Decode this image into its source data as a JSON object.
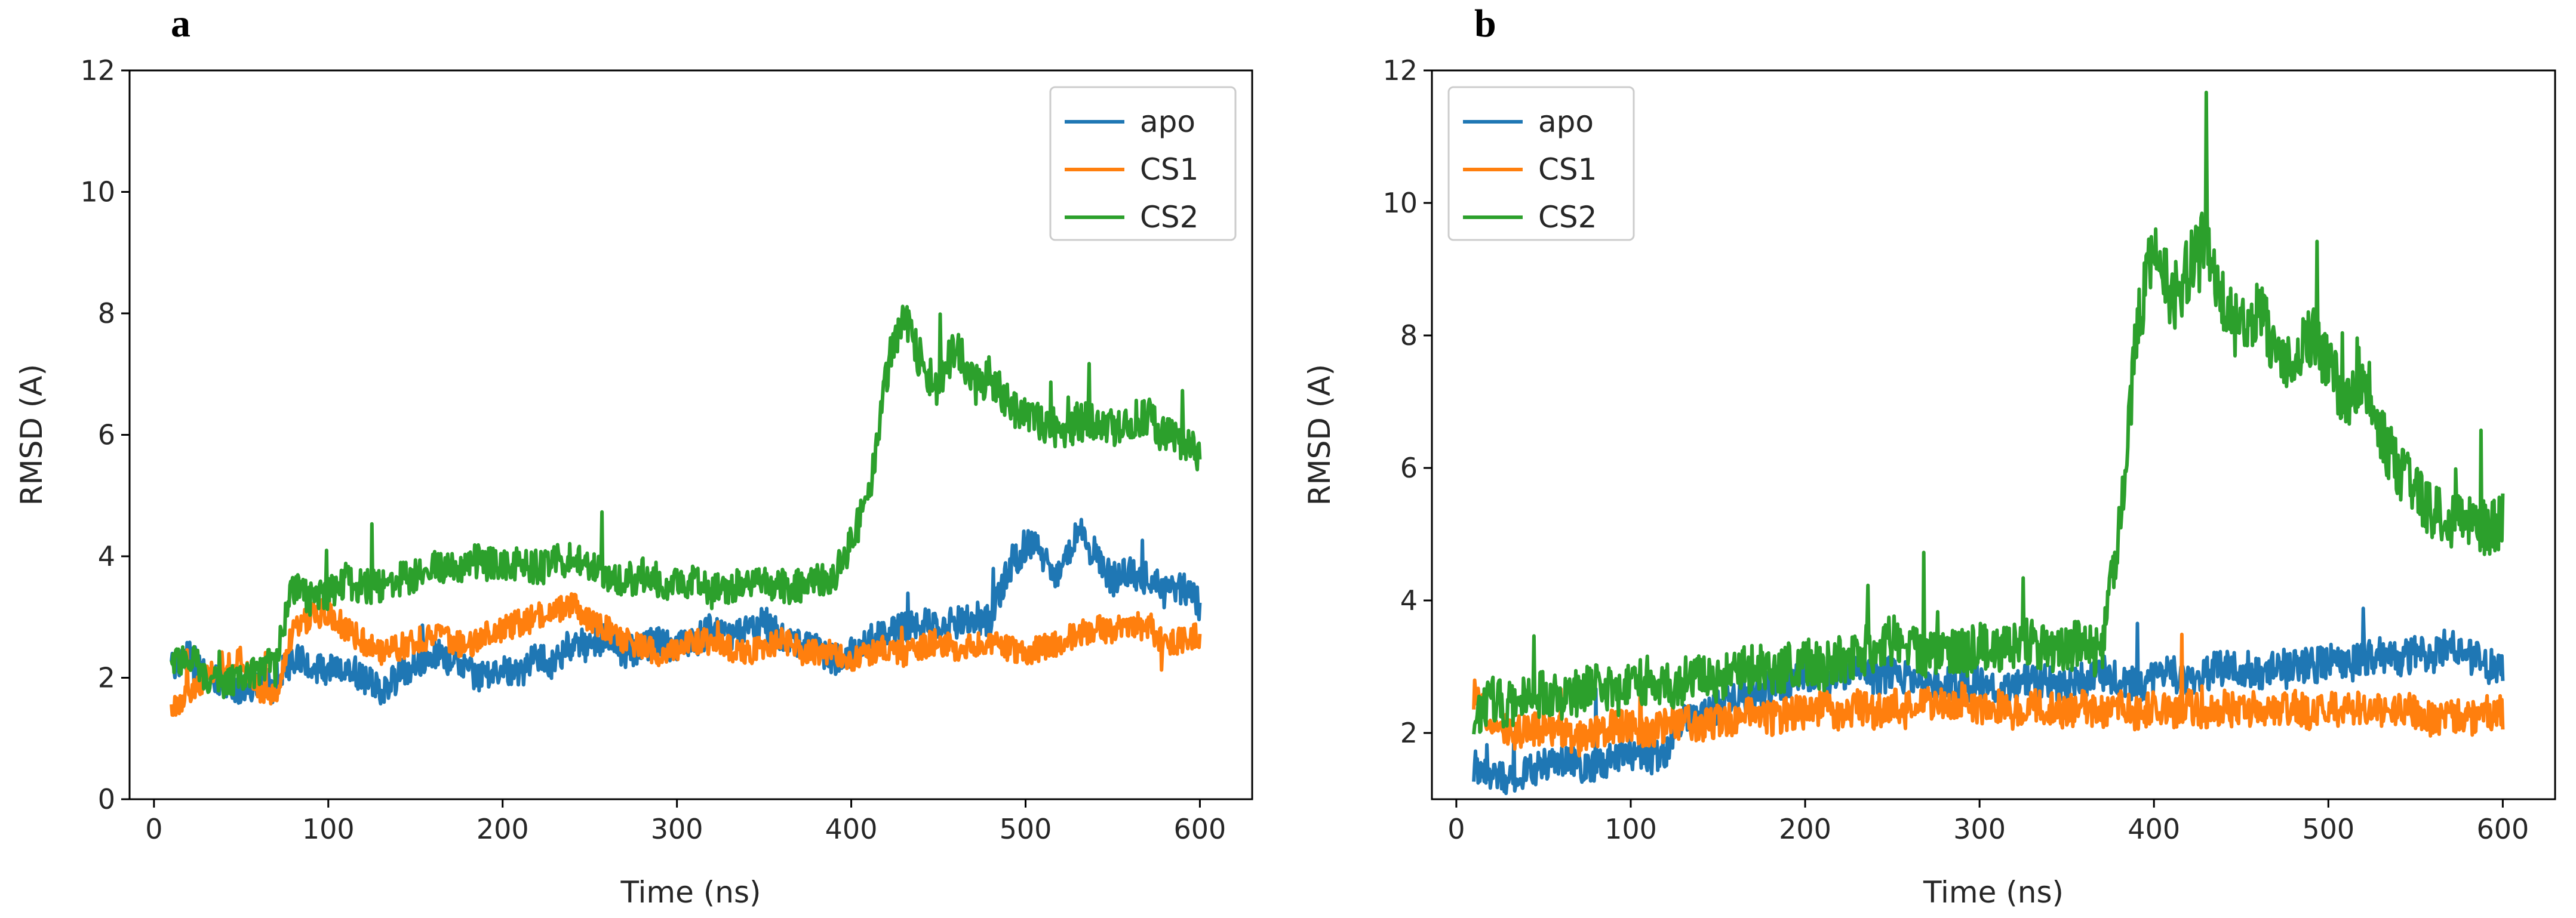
{
  "figure": {
    "panel_letters": [
      "a",
      "b"
    ]
  },
  "chart_data": [
    {
      "type": "line",
      "panel": "a",
      "title": "",
      "xlabel": "Time (ns)",
      "ylabel": "RMSD (A)",
      "xlim": [
        -14,
        630
      ],
      "ylim": [
        0,
        12
      ],
      "xticks": [
        0,
        100,
        200,
        300,
        400,
        500,
        600
      ],
      "yticks": [
        0,
        2,
        4,
        6,
        8,
        10,
        12
      ],
      "legend_position": "top-right",
      "series": [
        {
          "name": "apo",
          "color": "#1f77b4",
          "noise": 0.22,
          "x": [
            10,
            20,
            30,
            40,
            50,
            60,
            70,
            80,
            90,
            100,
            110,
            120,
            130,
            140,
            150,
            160,
            170,
            180,
            190,
            200,
            210,
            220,
            230,
            240,
            250,
            260,
            270,
            280,
            290,
            300,
            310,
            320,
            330,
            340,
            350,
            360,
            370,
            380,
            390,
            400,
            410,
            420,
            430,
            440,
            450,
            460,
            470,
            480,
            490,
            500,
            510,
            520,
            530,
            540,
            550,
            560,
            570,
            580,
            590,
            600
          ],
          "y": [
            2.2,
            2.4,
            2.0,
            1.9,
            1.8,
            1.9,
            2.0,
            2.3,
            2.2,
            2.1,
            2.2,
            2.0,
            1.8,
            2.0,
            2.2,
            2.4,
            2.3,
            2.1,
            2.0,
            2.2,
            2.0,
            2.4,
            2.2,
            2.6,
            2.5,
            2.7,
            2.4,
            2.5,
            2.6,
            2.5,
            2.6,
            2.8,
            2.7,
            2.8,
            2.9,
            2.7,
            2.6,
            2.5,
            2.3,
            2.4,
            2.6,
            2.7,
            2.8,
            2.9,
            2.8,
            2.9,
            3.0,
            2.9,
            3.8,
            4.2,
            4.0,
            3.6,
            4.4,
            4.0,
            3.6,
            3.8,
            3.6,
            3.4,
            3.5,
            3.2
          ]
        },
        {
          "name": "CS1",
          "color": "#ff7f0e",
          "noise": 0.18,
          "x": [
            10,
            20,
            30,
            40,
            50,
            60,
            70,
            80,
            90,
            100,
            110,
            120,
            130,
            140,
            150,
            160,
            170,
            180,
            190,
            200,
            210,
            220,
            230,
            240,
            250,
            260,
            270,
            280,
            290,
            300,
            310,
            320,
            330,
            340,
            350,
            360,
            370,
            380,
            390,
            400,
            410,
            420,
            430,
            440,
            450,
            460,
            470,
            480,
            490,
            500,
            510,
            520,
            530,
            540,
            550,
            560,
            570,
            580,
            590,
            600
          ],
          "y": [
            1.5,
            1.7,
            2.0,
            2.2,
            2.3,
            1.8,
            1.7,
            2.8,
            3.0,
            3.1,
            2.8,
            2.6,
            2.4,
            2.5,
            2.6,
            2.7,
            2.6,
            2.5,
            2.7,
            2.8,
            2.9,
            3.0,
            3.1,
            3.2,
            2.9,
            2.8,
            2.6,
            2.5,
            2.4,
            2.5,
            2.6,
            2.6,
            2.5,
            2.4,
            2.5,
            2.6,
            2.5,
            2.4,
            2.4,
            2.3,
            2.4,
            2.5,
            2.4,
            2.5,
            2.6,
            2.5,
            2.5,
            2.6,
            2.5,
            2.4,
            2.5,
            2.6,
            2.7,
            2.8,
            2.8,
            2.9,
            2.8,
            2.6,
            2.6,
            2.7
          ]
        },
        {
          "name": "CS2",
          "color": "#2ca02c",
          "noise": 0.22,
          "x": [
            10,
            20,
            30,
            40,
            50,
            60,
            70,
            80,
            90,
            100,
            110,
            120,
            130,
            140,
            150,
            160,
            170,
            180,
            190,
            200,
            210,
            220,
            230,
            240,
            250,
            260,
            270,
            280,
            290,
            300,
            310,
            320,
            330,
            340,
            350,
            360,
            370,
            380,
            390,
            400,
            410,
            420,
            430,
            440,
            450,
            460,
            470,
            480,
            490,
            500,
            510,
            520,
            530,
            540,
            550,
            560,
            570,
            580,
            590,
            600
          ],
          "y": [
            2.2,
            2.4,
            2.0,
            1.9,
            2.0,
            2.1,
            2.3,
            3.5,
            3.3,
            3.4,
            3.6,
            3.5,
            3.5,
            3.6,
            3.7,
            3.8,
            3.8,
            3.9,
            3.9,
            3.8,
            3.9,
            3.8,
            3.9,
            4.0,
            3.9,
            3.7,
            3.6,
            3.7,
            3.6,
            3.5,
            3.6,
            3.4,
            3.5,
            3.6,
            3.6,
            3.5,
            3.5,
            3.6,
            3.7,
            4.2,
            5.0,
            7.0,
            8.0,
            7.2,
            6.8,
            7.5,
            6.8,
            7.0,
            6.5,
            6.3,
            6.2,
            6.1,
            6.2,
            6.2,
            6.1,
            6.2,
            6.3,
            6.0,
            5.8,
            5.7
          ]
        }
      ]
    },
    {
      "type": "line",
      "panel": "b",
      "title": "",
      "xlabel": "Time (ns)",
      "ylabel": "RMSD (A)",
      "xlim": [
        -14,
        630
      ],
      "ylim": [
        1,
        12
      ],
      "xticks": [
        0,
        100,
        200,
        300,
        400,
        500,
        600
      ],
      "yticks": [
        2,
        4,
        6,
        8,
        10,
        12
      ],
      "legend_position": "top-left",
      "series": [
        {
          "name": "apo",
          "color": "#1f77b4",
          "noise": 0.22,
          "x": [
            10,
            20,
            30,
            40,
            50,
            60,
            70,
            80,
            90,
            100,
            110,
            120,
            130,
            140,
            150,
            160,
            170,
            180,
            190,
            200,
            210,
            220,
            230,
            240,
            250,
            260,
            270,
            280,
            290,
            300,
            310,
            320,
            330,
            340,
            350,
            360,
            370,
            380,
            390,
            400,
            410,
            420,
            430,
            440,
            450,
            460,
            470,
            480,
            490,
            500,
            510,
            520,
            530,
            540,
            550,
            560,
            570,
            580,
            590,
            600
          ],
          "y": [
            1.5,
            1.4,
            1.3,
            1.4,
            1.5,
            1.6,
            1.5,
            1.5,
            1.6,
            1.7,
            1.6,
            1.7,
            2.2,
            2.3,
            2.4,
            2.5,
            2.6,
            2.7,
            2.8,
            2.9,
            2.8,
            2.9,
            3.0,
            2.8,
            2.9,
            2.8,
            2.7,
            2.8,
            2.7,
            2.8,
            2.6,
            2.7,
            2.8,
            2.8,
            2.7,
            2.8,
            2.9,
            2.8,
            2.7,
            2.8,
            2.9,
            2.8,
            2.9,
            3.0,
            3.0,
            2.9,
            3.0,
            3.0,
            3.0,
            3.1,
            3.0,
            3.1,
            3.2,
            3.1,
            3.2,
            3.1,
            3.4,
            3.2,
            3.0,
            3.0
          ]
        },
        {
          "name": "CS1",
          "color": "#ff7f0e",
          "noise": 0.22,
          "x": [
            10,
            20,
            30,
            40,
            50,
            60,
            70,
            80,
            90,
            100,
            110,
            120,
            130,
            140,
            150,
            160,
            170,
            180,
            190,
            200,
            210,
            220,
            230,
            240,
            250,
            260,
            270,
            280,
            290,
            300,
            310,
            320,
            330,
            340,
            350,
            360,
            370,
            380,
            390,
            400,
            410,
            420,
            430,
            440,
            450,
            460,
            470,
            480,
            490,
            500,
            510,
            520,
            530,
            540,
            550,
            560,
            570,
            580,
            590,
            600
          ],
          "y": [
            2.6,
            2.2,
            2.0,
            2.0,
            2.1,
            2.0,
            1.9,
            2.0,
            2.1,
            2.1,
            2.0,
            2.1,
            2.2,
            2.1,
            2.2,
            2.2,
            2.3,
            2.2,
            2.3,
            2.3,
            2.4,
            2.3,
            2.4,
            2.3,
            2.4,
            2.4,
            2.5,
            2.4,
            2.5,
            2.4,
            2.4,
            2.3,
            2.4,
            2.4,
            2.3,
            2.4,
            2.3,
            2.4,
            2.3,
            2.4,
            2.3,
            2.4,
            2.3,
            2.4,
            2.3,
            2.4,
            2.3,
            2.4,
            2.3,
            2.4,
            2.3,
            2.4,
            2.3,
            2.4,
            2.3,
            2.2,
            2.3,
            2.2,
            2.3,
            2.3
          ]
        },
        {
          "name": "CS2",
          "color": "#2ca02c",
          "noise": 0.3,
          "x": [
            10,
            20,
            30,
            40,
            50,
            60,
            70,
            80,
            90,
            100,
            110,
            120,
            130,
            140,
            150,
            160,
            170,
            180,
            190,
            200,
            210,
            220,
            230,
            240,
            250,
            260,
            270,
            280,
            290,
            300,
            310,
            320,
            330,
            340,
            350,
            360,
            370,
            380,
            390,
            400,
            410,
            420,
            430,
            440,
            450,
            460,
            470,
            480,
            490,
            500,
            510,
            520,
            530,
            540,
            550,
            560,
            570,
            580,
            590,
            600
          ],
          "y": [
            2.3,
            2.5,
            2.4,
            2.5,
            2.6,
            2.5,
            2.6,
            2.7,
            2.6,
            2.7,
            2.8,
            2.7,
            2.8,
            2.9,
            2.8,
            2.9,
            3.0,
            2.9,
            3.0,
            3.1,
            3.0,
            3.1,
            3.2,
            3.3,
            3.4,
            3.3,
            3.2,
            3.3,
            3.2,
            3.3,
            3.2,
            3.3,
            3.4,
            3.3,
            3.3,
            3.3,
            3.2,
            5.0,
            8.0,
            9.5,
            8.5,
            9.0,
            9.5,
            8.5,
            8.0,
            8.5,
            7.8,
            7.5,
            8.0,
            7.5,
            7.0,
            7.5,
            6.5,
            6.0,
            5.6,
            5.3,
            5.2,
            5.2,
            5.1,
            5.2
          ]
        }
      ]
    }
  ]
}
